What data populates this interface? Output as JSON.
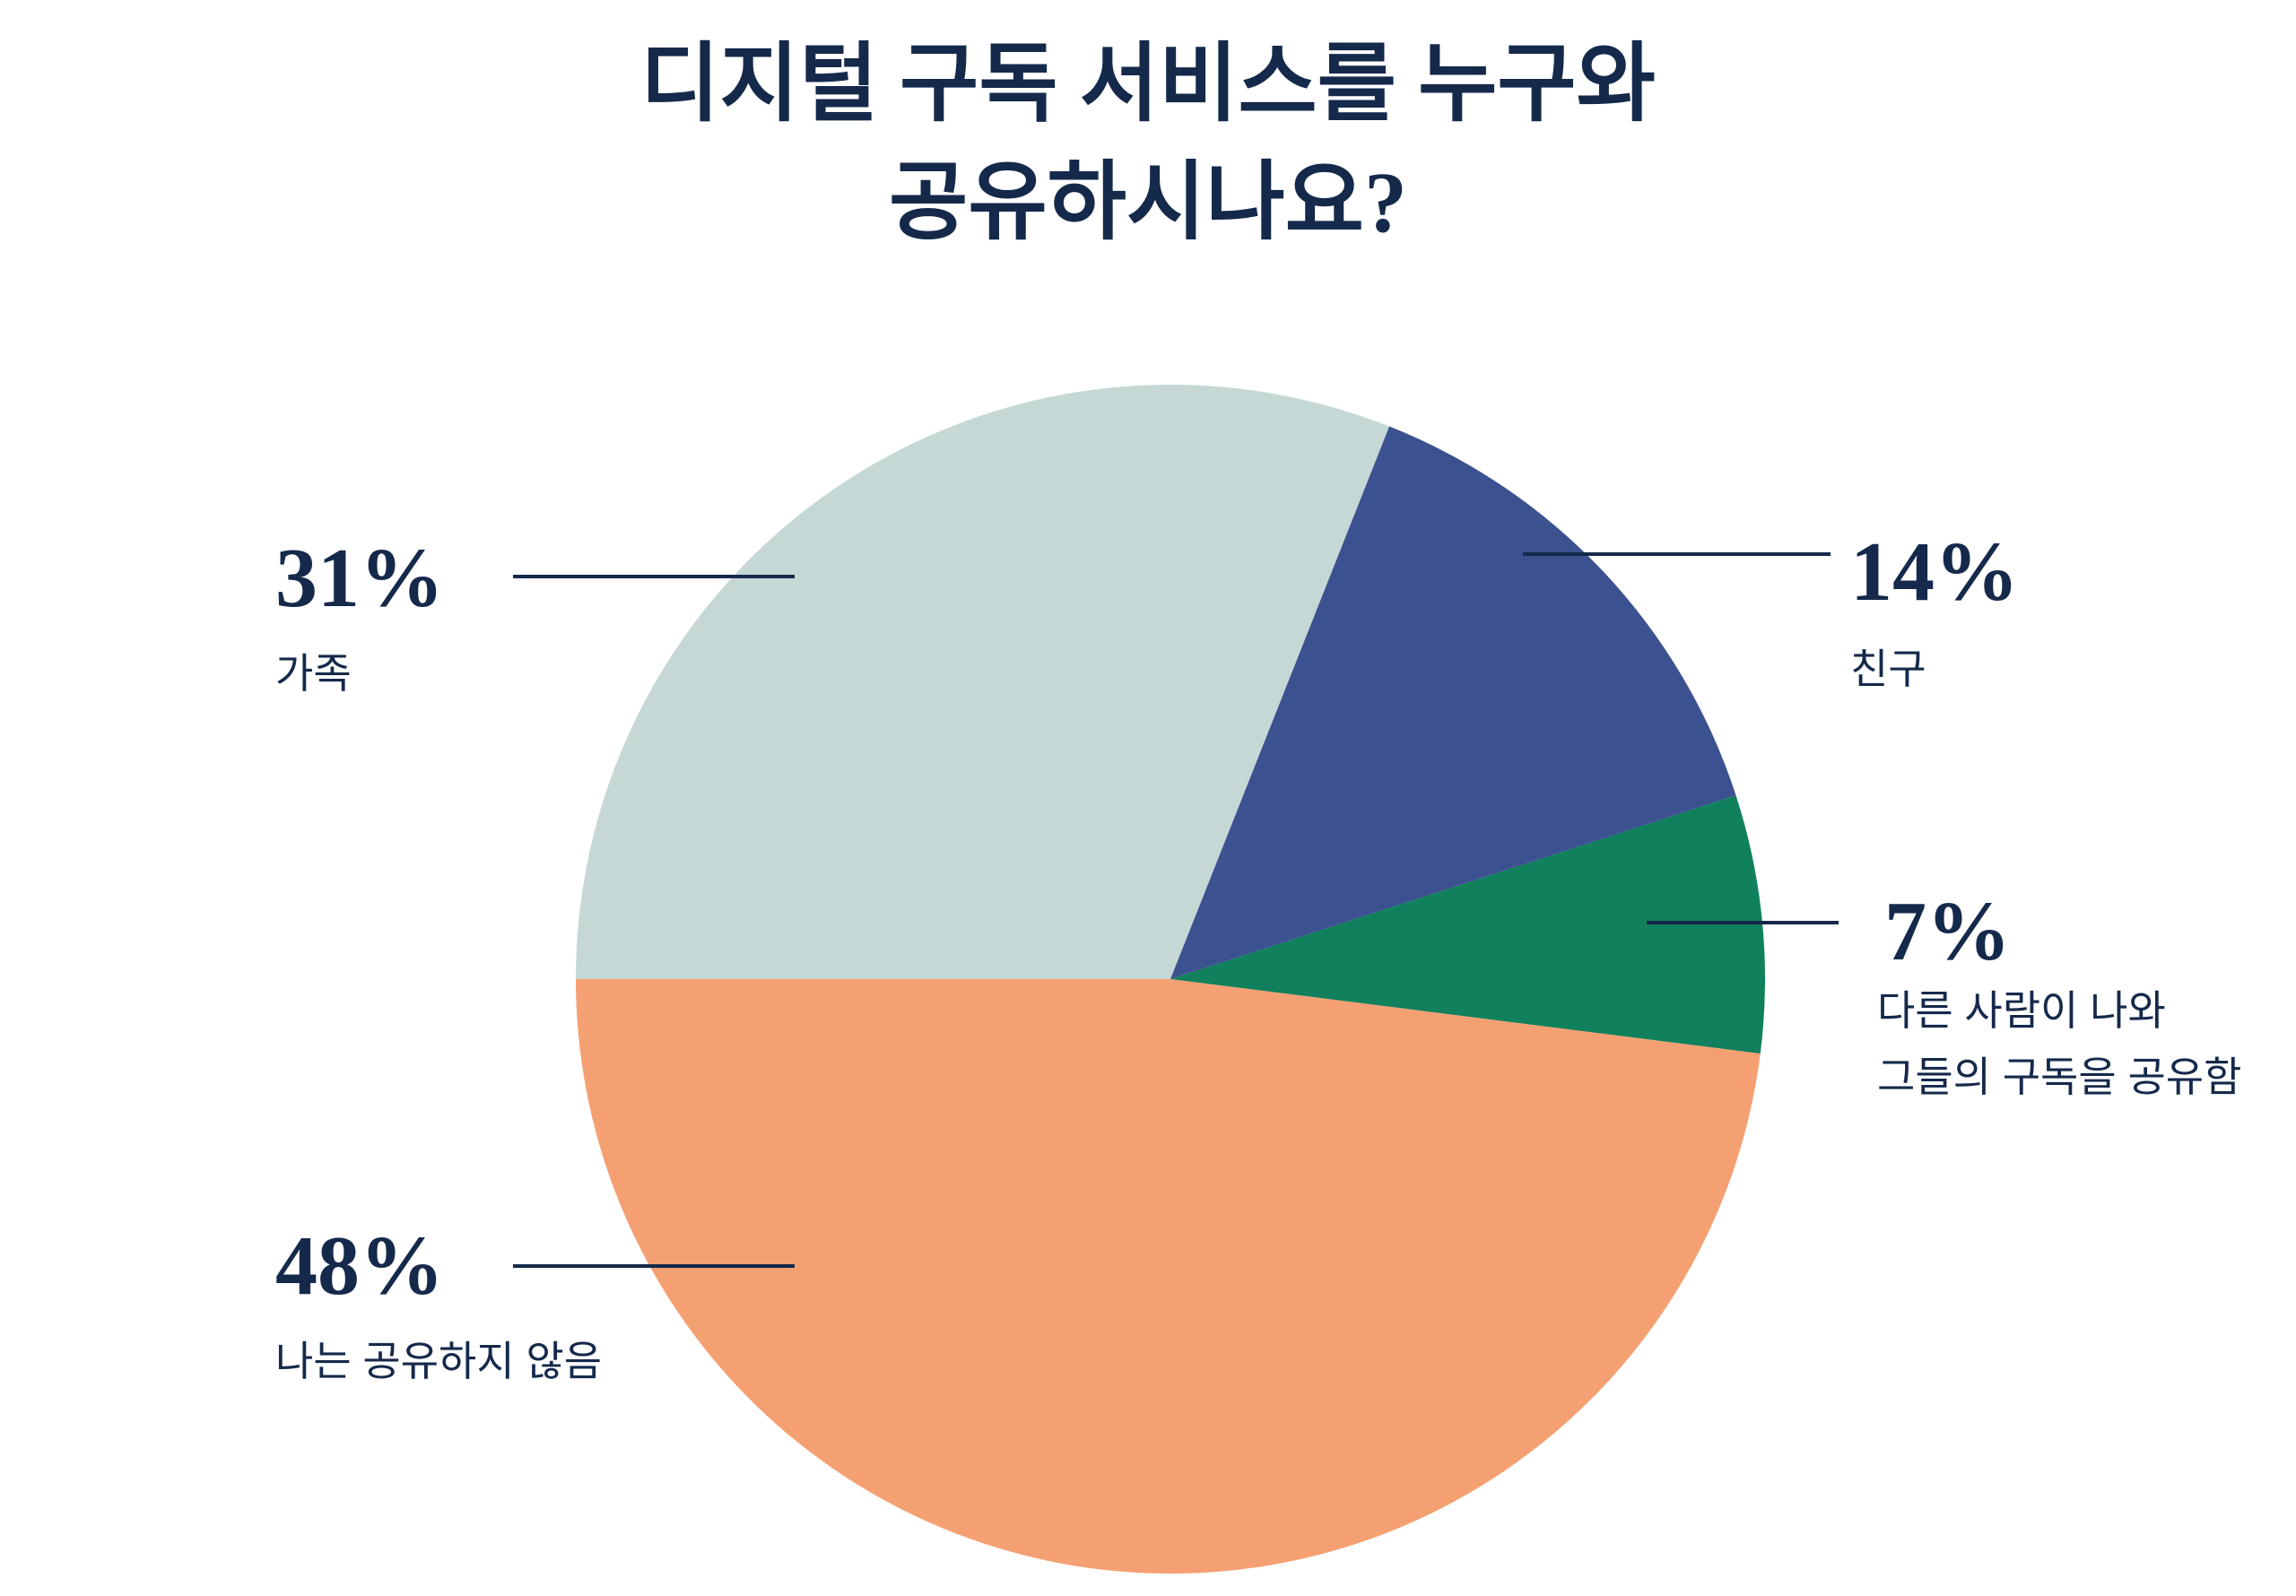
{
  "title": {
    "line1": "디지털 구독 서비스를 누구와",
    "line2": "공유하시나요?"
  },
  "colors": {
    "text": "#15294b",
    "leader_line": "#15294b",
    "background": "#ffffff"
  },
  "chart_data": {
    "type": "pie",
    "title": "디지털 구독 서비스를 누구와 공유하시나요?",
    "start_angle_deg_clockwise_from_top": 270,
    "sweep": "clockwise",
    "legend_position": "callouts",
    "slices": [
      {
        "id": "family",
        "label": "가족",
        "value": 31,
        "color": "#c6d8d5"
      },
      {
        "id": "friends",
        "label": "친구",
        "value": 14,
        "color": "#3c5190"
      },
      {
        "id": "shared-with-me",
        "label": "다른 사람이 나와 그들의 구독을 공유함",
        "value": 7,
        "color": "#11805d"
      },
      {
        "id": "no-share",
        "label": "나는 공유하지 않음",
        "value": 48,
        "color": "#f5a072"
      }
    ]
  },
  "callouts": {
    "family": {
      "pct": "31%",
      "label": "가족"
    },
    "friends": {
      "pct": "14%",
      "label": "친구"
    },
    "shared": {
      "pct": "7%",
      "label_line1": "다른 사람이 나와",
      "label_line2": "그들의 구독을 공유함"
    },
    "none": {
      "pct": "48%",
      "label": "나는 공유하지 않음"
    }
  }
}
